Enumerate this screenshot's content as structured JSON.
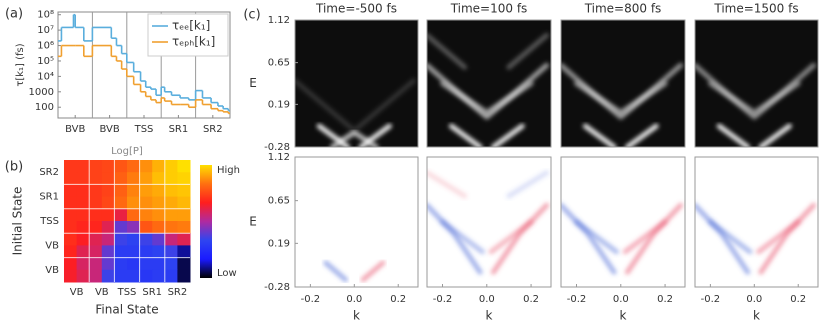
{
  "chart_data": [
    {
      "type": "line",
      "panel_label": "(a)",
      "ylabel": "τ[k₁] (fs)",
      "log_y": true,
      "step": true,
      "legend": "upper right",
      "xlim": [
        0,
        5
      ],
      "xticks": [
        {
          "value": 0.5,
          "label": "BVB"
        },
        {
          "value": 1.5,
          "label": "BVB"
        },
        {
          "value": 2.5,
          "label": "TSS"
        },
        {
          "value": 3.5,
          "label": "SR1"
        },
        {
          "value": 4.5,
          "label": "SR2"
        }
      ],
      "ylim": [
        20,
        150000000
      ],
      "yticks": [
        {
          "value": 100000000,
          "label": "10⁸"
        },
        {
          "value": 10000000,
          "label": "10⁷"
        },
        {
          "value": 1000000,
          "label": "10⁶"
        },
        {
          "value": 100000,
          "label": "10⁵"
        },
        {
          "value": 10000,
          "label": "10⁴"
        },
        1000,
        100
      ],
      "x": [
        0,
        0.1,
        0.45,
        0.5,
        0.75,
        1.0,
        1.55,
        1.7,
        1.85,
        2.0,
        2.2,
        2.4,
        2.55,
        2.7,
        2.85,
        3.0,
        3.1,
        3.3,
        3.55,
        3.8,
        4.0,
        4.2,
        4.45,
        4.65,
        4.8,
        4.95
      ],
      "series": [
        {
          "name": "τₑₑ[k₁]",
          "color": "#5aaedd",
          "values": [
            2000000,
            15000000,
            100000000,
            15000000,
            2000000,
            15000000,
            3000000,
            1000000,
            300000,
            80000,
            20000,
            5000,
            2000,
            1500,
            600,
            2000,
            1000,
            600,
            400,
            300,
            1200,
            400,
            200,
            120,
            80,
            60
          ]
        },
        {
          "name": "τₑₚₕ[k₁]",
          "color": "#f0a030",
          "values": [
            200000,
            1000000,
            1000000,
            1000000,
            200000,
            1000000,
            200000,
            100000,
            30000,
            10000,
            3000,
            1000,
            500,
            300,
            200,
            400,
            250,
            150,
            150,
            100,
            300,
            150,
            80,
            60,
            50,
            40
          ]
        }
      ]
    },
    {
      "type": "heatmap",
      "panel_label": "(b)",
      "title": "Log[P]",
      "xlabel": "Final State",
      "ylabel": "Initial State",
      "x_categories": [
        "VB",
        "VB",
        "TSS",
        "SR1",
        "SR2"
      ],
      "y_categories": [
        "SR2",
        "SR1",
        "TSS",
        "VB",
        "VB"
      ],
      "colorbar_labels": [
        "High",
        "Low"
      ],
      "clim": [
        0,
        1
      ],
      "colorscale": [
        "#000000",
        "#1a1aff",
        "#2f45f0",
        "#b02aa0",
        "#ff1e1e",
        "#ff7010",
        "#ffe000"
      ],
      "values": [
        [
          0.72,
          0.72,
          0.74,
          0.75,
          0.78,
          0.82,
          0.88,
          0.93,
          0.97,
          1.0
        ],
        [
          0.72,
          0.72,
          0.74,
          0.75,
          0.8,
          0.85,
          0.9,
          0.95,
          0.97,
          0.98
        ],
        [
          0.7,
          0.7,
          0.72,
          0.74,
          0.8,
          0.86,
          0.9,
          0.92,
          0.95,
          0.96
        ],
        [
          0.7,
          0.7,
          0.72,
          0.75,
          0.82,
          0.88,
          0.88,
          0.9,
          0.92,
          0.94
        ],
        [
          0.7,
          0.7,
          0.7,
          0.7,
          0.62,
          0.82,
          0.86,
          0.88,
          0.9,
          0.9
        ],
        [
          0.7,
          0.68,
          0.68,
          0.6,
          0.4,
          0.45,
          0.78,
          0.82,
          0.84,
          0.85
        ],
        [
          0.7,
          0.66,
          0.6,
          0.55,
          0.35,
          0.32,
          0.35,
          0.4,
          0.55,
          0.6
        ],
        [
          0.68,
          0.6,
          0.58,
          0.4,
          0.3,
          0.3,
          0.3,
          0.32,
          0.35,
          0.1
        ],
        [
          0.66,
          0.58,
          0.55,
          0.4,
          0.3,
          0.28,
          0.3,
          0.3,
          0.32,
          0.05
        ],
        [
          0.65,
          0.6,
          0.55,
          0.35,
          0.3,
          0.3,
          0.28,
          0.3,
          0.3,
          0.05
        ]
      ]
    },
    {
      "type": "image",
      "panel_label": "(c)",
      "title": "Time=-500 fs",
      "ylabel": "E",
      "background": "#0d0d0d",
      "xlim": [
        -0.27,
        0.29
      ],
      "ylim": [
        -0.28,
        1.12
      ],
      "yticks": [
        1.12,
        0.65,
        0.19,
        -0.28
      ],
      "series": [
        {
          "color": "#ffffff",
          "opacity": 0.9,
          "x": [
            -0.16,
            -0.03
          ],
          "values": [
            -0.05,
            -0.28
          ]
        },
        {
          "color": "#ffffff",
          "opacity": 0.9,
          "x": [
            0.03,
            0.16
          ],
          "values": [
            -0.28,
            -0.05
          ]
        },
        {
          "color": "#ffffff",
          "opacity": 0.7,
          "x": [
            -0.1,
            0.0,
            0.1
          ],
          "values": [
            -0.28,
            -0.12,
            -0.28
          ]
        },
        {
          "color": "#ffffff",
          "opacity": 0.8,
          "x": [
            -0.11,
            0.11
          ],
          "values": [
            -0.26,
            -0.26
          ]
        },
        {
          "color": "#ffffff",
          "opacity": 0.15,
          "x": [
            -0.27,
            0.0,
            0.27
          ],
          "values": [
            0.45,
            -0.1,
            0.45
          ]
        }
      ]
    },
    {
      "type": "image",
      "title": "Time=100 fs",
      "background": "#0d0d0d",
      "xlim": [
        -0.27,
        0.29
      ],
      "ylim": [
        -0.28,
        1.12
      ],
      "series": [
        {
          "color": "#ffffff",
          "opacity": 0.6,
          "x": [
            -0.27,
            -0.12,
            0.0,
            0.12,
            0.27
          ],
          "values": [
            0.62,
            0.3,
            0.05,
            0.3,
            0.62
          ]
        },
        {
          "color": "#ffffff",
          "opacity": 0.5,
          "x": [
            -0.2,
            0.0,
            0.2
          ],
          "values": [
            0.42,
            0.1,
            0.42
          ]
        },
        {
          "color": "#ffffff",
          "opacity": 0.8,
          "x": [
            -0.17,
            -0.08,
            null,
            0.08,
            0.17
          ],
          "values": [
            0.76,
            0.76,
            null,
            0.76,
            0.76
          ]
        },
        {
          "color": "#ffffff",
          "opacity": 0.3,
          "x": [
            -0.27,
            -0.1,
            null,
            0.1,
            0.27
          ],
          "values": [
            0.95,
            0.6,
            null,
            0.6,
            0.95
          ]
        },
        {
          "color": "#ffffff",
          "opacity": 0.9,
          "x": [
            -0.16,
            -0.03,
            null,
            0.03,
            0.16
          ],
          "values": [
            -0.05,
            -0.28,
            null,
            -0.28,
            -0.05
          ]
        },
        {
          "color": "#ffffff",
          "opacity": 0.8,
          "x": [
            -0.11,
            0.11
          ],
          "values": [
            -0.26,
            -0.26
          ]
        }
      ]
    },
    {
      "type": "image",
      "title": "Time=800 fs",
      "background": "#0d0d0d",
      "xlim": [
        -0.27,
        0.29
      ],
      "ylim": [
        -0.28,
        1.12
      ],
      "series": [
        {
          "color": "#ffffff",
          "opacity": 0.55,
          "x": [
            -0.27,
            -0.12,
            0.0,
            0.12,
            0.27
          ],
          "values": [
            0.62,
            0.3,
            0.05,
            0.3,
            0.62
          ]
        },
        {
          "color": "#ffffff",
          "opacity": 0.5,
          "x": [
            -0.2,
            0.0,
            0.2
          ],
          "values": [
            0.42,
            0.1,
            0.42
          ]
        },
        {
          "color": "#ffffff",
          "opacity": 0.25,
          "x": [
            -0.17,
            -0.08,
            null,
            0.08,
            0.17
          ],
          "values": [
            0.76,
            0.76,
            null,
            0.76,
            0.76
          ]
        },
        {
          "color": "#ffffff",
          "opacity": 0.9,
          "x": [
            -0.16,
            -0.03,
            null,
            0.03,
            0.16
          ],
          "values": [
            -0.05,
            -0.28,
            null,
            -0.28,
            -0.05
          ]
        },
        {
          "color": "#ffffff",
          "opacity": 0.8,
          "x": [
            -0.11,
            0.11
          ],
          "values": [
            -0.26,
            -0.26
          ]
        }
      ]
    },
    {
      "type": "image",
      "title": "Time=1500 fs",
      "background": "#0d0d0d",
      "xlim": [
        -0.27,
        0.29
      ],
      "ylim": [
        -0.28,
        1.12
      ],
      "series": [
        {
          "color": "#ffffff",
          "opacity": 0.5,
          "x": [
            -0.27,
            -0.12,
            0.0,
            0.12,
            0.27
          ],
          "values": [
            0.62,
            0.3,
            0.05,
            0.3,
            0.62
          ]
        },
        {
          "color": "#ffffff",
          "opacity": 0.45,
          "x": [
            -0.2,
            0.0,
            0.2
          ],
          "values": [
            0.42,
            0.1,
            0.42
          ]
        },
        {
          "color": "#ffffff",
          "opacity": 0.1,
          "x": [
            -0.17,
            -0.08,
            null,
            0.08,
            0.17
          ],
          "values": [
            0.76,
            0.76,
            null,
            0.76,
            0.76
          ]
        },
        {
          "color": "#ffffff",
          "opacity": 0.9,
          "x": [
            -0.16,
            -0.03,
            null,
            0.03,
            0.16
          ],
          "values": [
            -0.05,
            -0.28,
            null,
            -0.28,
            -0.05
          ]
        },
        {
          "color": "#ffffff",
          "opacity": 0.8,
          "x": [
            -0.11,
            0.11
          ],
          "values": [
            -0.26,
            -0.26
          ]
        }
      ]
    },
    {
      "type": "image",
      "ylabel": "E",
      "xlabel": "k",
      "background": "#ffffff",
      "xlim": [
        -0.27,
        0.29
      ],
      "ylim": [
        -0.28,
        1.12
      ],
      "yticks": [
        1.12,
        0.65,
        0.19,
        -0.28
      ],
      "xticks": [
        -0.2,
        {
          "value": 0,
          "label": "0.0"
        },
        0.2
      ],
      "series": [
        {
          "color": "#4a6ad8",
          "opacity": 0.5,
          "x": [
            -0.13,
            -0.04
          ],
          "values": [
            -0.02,
            -0.2
          ]
        },
        {
          "color": "#e8506a",
          "opacity": 0.5,
          "x": [
            0.04,
            0.13
          ],
          "values": [
            -0.2,
            -0.02
          ]
        },
        {
          "color": "#e8506a",
          "opacity": 0.15,
          "x": [
            -0.05,
            0.08
          ],
          "values": [
            0.12,
            0.12
          ]
        }
      ]
    },
    {
      "type": "image",
      "xlabel": "k",
      "background": "#ffffff",
      "xlim": [
        -0.27,
        0.29
      ],
      "ylim": [
        -0.28,
        1.12
      ],
      "xticks": [
        -0.2,
        {
          "value": 0,
          "label": "0.0"
        },
        0.2
      ],
      "series": [
        {
          "color": "#e8506a",
          "opacity": 0.9,
          "x": [
            -0.17,
            -0.08
          ],
          "values": [
            0.76,
            0.76
          ]
        },
        {
          "color": "#4a6ad8",
          "opacity": 0.9,
          "x": [
            0.08,
            0.17
          ],
          "values": [
            0.76,
            0.76
          ]
        },
        {
          "color": "#4a6ad8",
          "opacity": 0.5,
          "x": [
            -0.27,
            -0.15,
            -0.03
          ],
          "values": [
            0.6,
            0.3,
            -0.12
          ]
        },
        {
          "color": "#e8506a",
          "opacity": 0.5,
          "x": [
            0.03,
            0.15,
            0.27
          ],
          "values": [
            -0.12,
            0.3,
            0.6
          ]
        },
        {
          "color": "#4a6ad8",
          "opacity": 0.4,
          "x": [
            -0.2,
            -0.02
          ],
          "values": [
            0.42,
            0.1
          ]
        },
        {
          "color": "#e8506a",
          "opacity": 0.4,
          "x": [
            0.02,
            0.2
          ],
          "values": [
            0.1,
            0.42
          ]
        },
        {
          "color": "#e8506a",
          "opacity": 0.2,
          "x": [
            -0.27,
            -0.1
          ],
          "values": [
            0.95,
            0.7
          ]
        },
        {
          "color": "#4a6ad8",
          "opacity": 0.2,
          "x": [
            0.1,
            0.27
          ],
          "values": [
            0.7,
            0.95
          ]
        }
      ]
    },
    {
      "type": "image",
      "xlabel": "k",
      "background": "#ffffff",
      "xlim": [
        -0.27,
        0.29
      ],
      "ylim": [
        -0.28,
        1.12
      ],
      "xticks": [
        -0.2,
        {
          "value": 0,
          "label": "0.0"
        },
        0.2
      ],
      "series": [
        {
          "color": "#e8506a",
          "opacity": 0.45,
          "x": [
            -0.17,
            -0.08
          ],
          "values": [
            0.76,
            0.76
          ]
        },
        {
          "color": "#4a6ad8",
          "opacity": 0.45,
          "x": [
            0.08,
            0.17
          ],
          "values": [
            0.76,
            0.76
          ]
        },
        {
          "color": "#4a6ad8",
          "opacity": 0.5,
          "x": [
            -0.27,
            -0.15,
            -0.03
          ],
          "values": [
            0.6,
            0.3,
            -0.12
          ]
        },
        {
          "color": "#e8506a",
          "opacity": 0.5,
          "x": [
            0.03,
            0.15,
            0.27
          ],
          "values": [
            -0.12,
            0.3,
            0.6
          ]
        },
        {
          "color": "#4a6ad8",
          "opacity": 0.45,
          "x": [
            -0.2,
            -0.02
          ],
          "values": [
            0.42,
            0.1
          ]
        },
        {
          "color": "#e8506a",
          "opacity": 0.45,
          "x": [
            0.02,
            0.2
          ],
          "values": [
            0.1,
            0.42
          ]
        }
      ]
    },
    {
      "type": "image",
      "xlabel": "k",
      "background": "#ffffff",
      "xlim": [
        -0.27,
        0.29
      ],
      "ylim": [
        -0.28,
        1.12
      ],
      "xticks": [
        -0.2,
        {
          "value": 0,
          "label": "0.0"
        },
        0.2
      ],
      "series": [
        {
          "color": "#e8506a",
          "opacity": 0.15,
          "x": [
            -0.17,
            -0.08
          ],
          "values": [
            0.76,
            0.76
          ]
        },
        {
          "color": "#4a6ad8",
          "opacity": 0.15,
          "x": [
            0.08,
            0.17
          ],
          "values": [
            0.76,
            0.76
          ]
        },
        {
          "color": "#4a6ad8",
          "opacity": 0.5,
          "x": [
            -0.27,
            -0.15,
            -0.03
          ],
          "values": [
            0.6,
            0.3,
            -0.12
          ]
        },
        {
          "color": "#e8506a",
          "opacity": 0.5,
          "x": [
            0.03,
            0.15,
            0.27
          ],
          "values": [
            -0.12,
            0.3,
            0.6
          ]
        },
        {
          "color": "#4a6ad8",
          "opacity": 0.45,
          "x": [
            -0.2,
            -0.02
          ],
          "values": [
            0.42,
            0.1
          ]
        },
        {
          "color": "#e8506a",
          "opacity": 0.45,
          "x": [
            0.02,
            0.2
          ],
          "values": [
            0.1,
            0.42
          ]
        }
      ]
    }
  ]
}
